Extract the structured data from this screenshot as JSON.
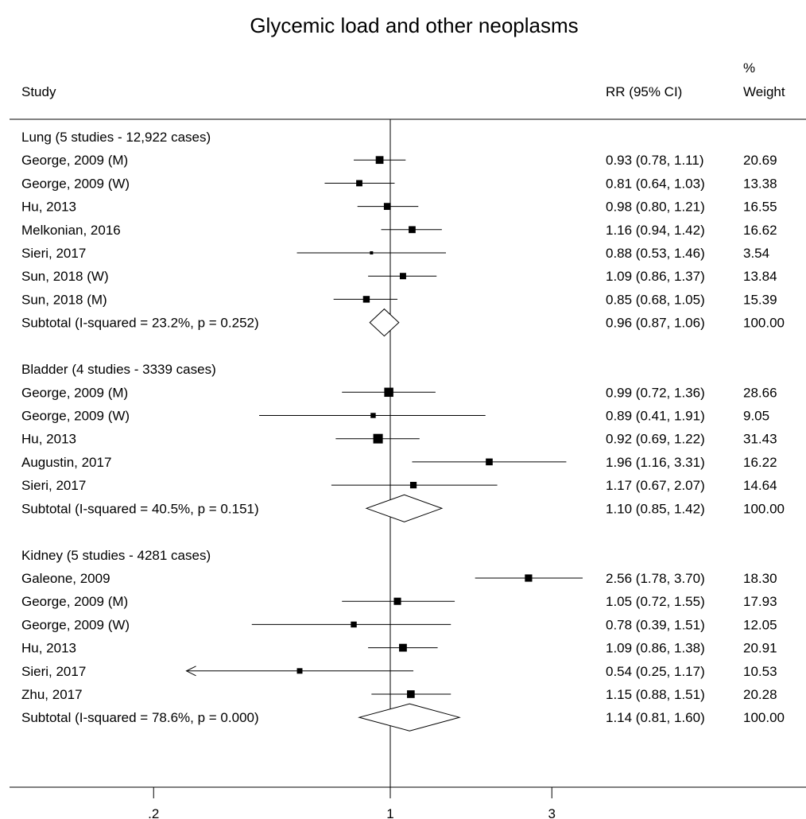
{
  "chart_data": {
    "type": "forest",
    "title": "Glycemic load and other neoplasms",
    "columns": {
      "study": "Study",
      "rr": "RR (95% CI)",
      "weight_top": "%",
      "weight": "Weight"
    },
    "x_scale": "log",
    "x_ticks": [
      {
        "value": 0.2,
        "label": ".2"
      },
      {
        "value": 1,
        "label": "1"
      },
      {
        "value": 3,
        "label": "3"
      }
    ],
    "xlim": [
      0.2,
      3
    ],
    "reference_line": 1,
    "groups": [
      {
        "label": "Lung (5 studies - 12,922 cases)",
        "studies": [
          {
            "name": "George, 2009 (M)",
            "rr": 0.93,
            "lo": 0.78,
            "hi": 1.11,
            "text": "0.93 (0.78, 1.11)",
            "weight": "20.69"
          },
          {
            "name": "George, 2009 (W)",
            "rr": 0.81,
            "lo": 0.64,
            "hi": 1.03,
            "text": "0.81 (0.64, 1.03)",
            "weight": "13.38"
          },
          {
            "name": "Hu, 2013",
            "rr": 0.98,
            "lo": 0.8,
            "hi": 1.21,
            "text": "0.98 (0.80, 1.21)",
            "weight": "16.55"
          },
          {
            "name": "Melkonian, 2016",
            "rr": 1.16,
            "lo": 0.94,
            "hi": 1.42,
            "text": "1.16 (0.94, 1.42)",
            "weight": "16.62"
          },
          {
            "name": "Sieri, 2017",
            "rr": 0.88,
            "lo": 0.53,
            "hi": 1.46,
            "text": "0.88 (0.53, 1.46)",
            "weight": "3.54"
          },
          {
            "name": "Sun, 2018 (W)",
            "rr": 1.09,
            "lo": 0.86,
            "hi": 1.37,
            "text": "1.09 (0.86, 1.37)",
            "weight": "13.84"
          },
          {
            "name": "Sun, 2018 (M)",
            "rr": 0.85,
            "lo": 0.68,
            "hi": 1.05,
            "text": "0.85 (0.68, 1.05)",
            "weight": "15.39"
          }
        ],
        "subtotal": {
          "label": "Subtotal  (I-squared = 23.2%, p = 0.252)",
          "rr": 0.96,
          "lo": 0.87,
          "hi": 1.06,
          "text": "0.96 (0.87, 1.06)",
          "weight": "100.00"
        }
      },
      {
        "label": "Bladder (4 studies - 3339 cases)",
        "studies": [
          {
            "name": "George, 2009 (M)",
            "rr": 0.99,
            "lo": 0.72,
            "hi": 1.36,
            "text": "0.99 (0.72, 1.36)",
            "weight": "28.66"
          },
          {
            "name": "George, 2009 (W)",
            "rr": 0.89,
            "lo": 0.41,
            "hi": 1.91,
            "text": "0.89 (0.41, 1.91)",
            "weight": "9.05"
          },
          {
            "name": "Hu, 2013",
            "rr": 0.92,
            "lo": 0.69,
            "hi": 1.22,
            "text": "0.92 (0.69, 1.22)",
            "weight": "31.43"
          },
          {
            "name": "Augustin, 2017",
            "rr": 1.96,
            "lo": 1.16,
            "hi": 3.31,
            "text": "1.96 (1.16, 3.31)",
            "weight": "16.22"
          },
          {
            "name": "Sieri, 2017",
            "rr": 1.17,
            "lo": 0.67,
            "hi": 2.07,
            "text": "1.17 (0.67, 2.07)",
            "weight": "14.64"
          }
        ],
        "subtotal": {
          "label": "Subtotal  (I-squared = 40.5%, p = 0.151)",
          "rr": 1.1,
          "lo": 0.85,
          "hi": 1.42,
          "text": "1.10 (0.85, 1.42)",
          "weight": "100.00"
        }
      },
      {
        "label": "Kidney (5 studies - 4281 cases)",
        "studies": [
          {
            "name": "Galeone, 2009",
            "rr": 2.56,
            "lo": 1.78,
            "hi": 3.7,
            "text": "2.56 (1.78, 3.70)",
            "weight": "18.30"
          },
          {
            "name": "George, 2009 (M)",
            "rr": 1.05,
            "lo": 0.72,
            "hi": 1.55,
            "text": "1.05 (0.72, 1.55)",
            "weight": "17.93"
          },
          {
            "name": "George, 2009 (W)",
            "rr": 0.78,
            "lo": 0.39,
            "hi": 1.51,
            "text": "0.78 (0.39, 1.51)",
            "weight": "12.05"
          },
          {
            "name": "Hu, 2013",
            "rr": 1.09,
            "lo": 0.86,
            "hi": 1.38,
            "text": "1.09 (0.86, 1.38)",
            "weight": "20.91"
          },
          {
            "name": "Sieri, 2017",
            "rr": 0.54,
            "lo": 0.25,
            "hi": 1.17,
            "text": "0.54 (0.25, 1.17)",
            "weight": "10.53",
            "lo_arrow": true
          },
          {
            "name": "Zhu, 2017",
            "rr": 1.15,
            "lo": 0.88,
            "hi": 1.51,
            "text": "1.15 (0.88, 1.51)",
            "weight": "20.28"
          }
        ],
        "subtotal": {
          "label": "Subtotal  (I-squared = 78.6%, p = 0.000)",
          "rr": 1.14,
          "lo": 0.81,
          "hi": 1.6,
          "text": "1.14 (0.81, 1.60)",
          "weight": "100.00"
        }
      }
    ]
  }
}
